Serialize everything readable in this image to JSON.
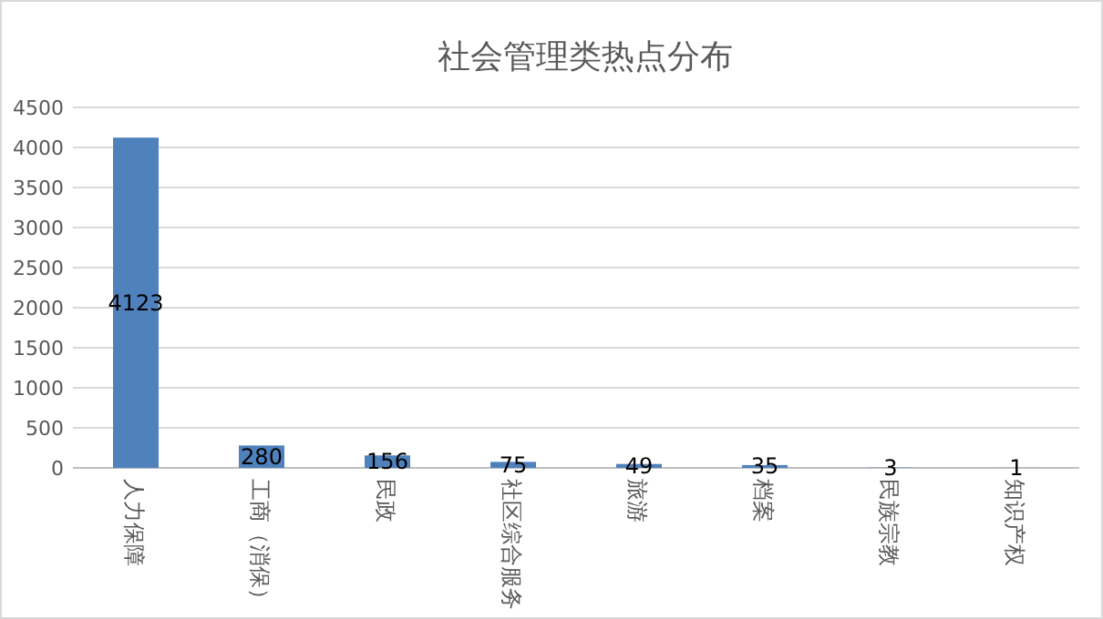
{
  "chart_data": {
    "type": "bar",
    "title": "社会管理类热点分布",
    "categories": [
      "人力保障",
      "工商（消保）",
      "民政",
      "社区综合服务",
      "旅游",
      "档案",
      "民族宗教",
      "知识产权"
    ],
    "values": [
      4123,
      280,
      156,
      75,
      49,
      35,
      3,
      1
    ],
    "color": "#4f81bd",
    "ylim": [
      0,
      4500
    ],
    "yticks": [
      0,
      500,
      1000,
      1500,
      2000,
      2500,
      3000,
      3500,
      4000,
      4500
    ],
    "grid": "y",
    "data_labels": true
  }
}
